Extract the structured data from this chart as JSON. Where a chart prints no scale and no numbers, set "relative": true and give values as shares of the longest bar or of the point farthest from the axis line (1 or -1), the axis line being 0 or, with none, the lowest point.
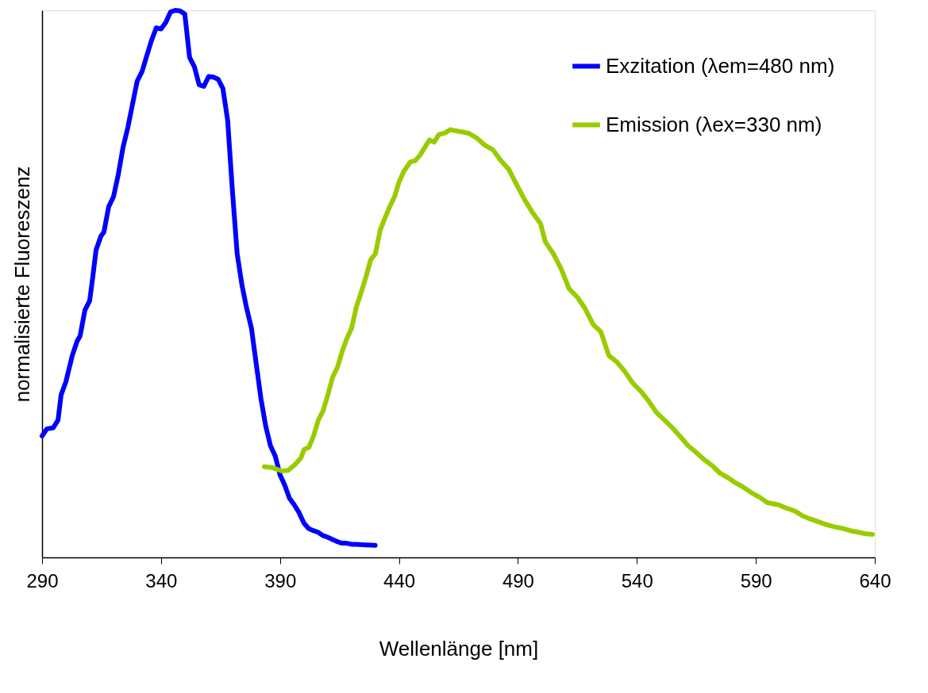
{
  "chart_data": {
    "type": "line",
    "xlabel": "Wellenlänge [nm]",
    "ylabel": "normalisierte Fluoreszenz",
    "relative": true,
    "xlim": [
      290,
      640
    ],
    "xticks": [
      290,
      340,
      390,
      440,
      490,
      540,
      590,
      640
    ],
    "grid": false,
    "legend": "top right",
    "marker": "none",
    "line_style": "solid",
    "series": [
      {
        "name": "Exzitation (λem=480 nm)",
        "color": "#0000ff",
        "x": [
          290,
          292,
          294.7,
          296.7,
          298,
          300,
          302.7,
          304.7,
          306,
          308,
          310,
          311.3,
          312.7,
          314.7,
          316,
          318,
          320,
          322,
          324,
          326,
          328,
          330,
          332,
          334,
          336,
          338,
          340,
          342,
          344,
          346,
          348,
          350,
          352,
          354,
          356,
          358,
          360,
          362,
          364,
          366,
          368,
          370,
          372,
          374,
          376,
          378,
          380,
          382,
          384,
          386,
          388,
          390,
          392,
          394,
          396,
          398,
          400,
          402,
          404,
          406,
          408,
          410,
          412,
          414,
          416,
          418,
          420,
          422,
          426,
          430
        ],
        "values": [
          0.222,
          0.235,
          0.237,
          0.251,
          0.297,
          0.321,
          0.369,
          0.395,
          0.405,
          0.452,
          0.469,
          0.512,
          0.562,
          0.587,
          0.595,
          0.641,
          0.659,
          0.699,
          0.749,
          0.785,
          0.828,
          0.871,
          0.888,
          0.917,
          0.945,
          0.968,
          0.966,
          0.978,
          0.997,
          1.0,
          0.999,
          0.993,
          0.914,
          0.897,
          0.864,
          0.861,
          0.879,
          0.878,
          0.874,
          0.857,
          0.799,
          0.67,
          0.555,
          0.498,
          0.455,
          0.419,
          0.354,
          0.29,
          0.24,
          0.204,
          0.185,
          0.151,
          0.132,
          0.108,
          0.096,
          0.082,
          0.063,
          0.053,
          0.049,
          0.046,
          0.04,
          0.037,
          0.033,
          0.029,
          0.026,
          0.026,
          0.024,
          0.024,
          0.023,
          0.022
        ]
      },
      {
        "name": "Emission (λex=330 nm)",
        "color": "#99cc00",
        "x": [
          383.4,
          386.8,
          390.8,
          393.4,
          396.1,
          398.8,
          400.1,
          402.1,
          404.1,
          406.1,
          408.1,
          410.1,
          412.1,
          414.1,
          416.1,
          418.1,
          420.1,
          422.1,
          424.1,
          426.1,
          428.1,
          430.1,
          432.1,
          434.1,
          436.1,
          438.1,
          440.1,
          442.1,
          444.8,
          446.8,
          448.8,
          450.8,
          452.8,
          454.8,
          456.8,
          459.5,
          461.5,
          463.5,
          466.2,
          469.5,
          472.9,
          476.2,
          479.5,
          482.9,
          486.2,
          489.5,
          492.9,
          496.2,
          499.5,
          501.5,
          504.9,
          508.2,
          511.5,
          514.9,
          518.2,
          521.6,
          524.9,
          528.2,
          531.6,
          534.9,
          538.2,
          541.6,
          544.9,
          548.2,
          551.6,
          554.9,
          558.2,
          561.6,
          564.9,
          568.2,
          571.6,
          574.9,
          578.2,
          581.6,
          584.9,
          588.2,
          591.6,
          594.9,
          599.6,
          602.9,
          606.3,
          609.6,
          613.0,
          616.3,
          619.6,
          623.0,
          626.3,
          629.7,
          633.0,
          636.3,
          639.0
        ],
        "values": [
          0.166,
          0.164,
          0.158,
          0.159,
          0.169,
          0.182,
          0.197,
          0.201,
          0.222,
          0.251,
          0.268,
          0.297,
          0.329,
          0.347,
          0.376,
          0.4,
          0.419,
          0.458,
          0.484,
          0.512,
          0.544,
          0.555,
          0.598,
          0.62,
          0.641,
          0.659,
          0.687,
          0.706,
          0.723,
          0.725,
          0.735,
          0.749,
          0.763,
          0.759,
          0.773,
          0.776,
          0.782,
          0.78,
          0.778,
          0.775,
          0.766,
          0.753,
          0.745,
          0.725,
          0.709,
          0.681,
          0.653,
          0.63,
          0.61,
          0.577,
          0.555,
          0.527,
          0.491,
          0.476,
          0.455,
          0.426,
          0.412,
          0.369,
          0.357,
          0.34,
          0.319,
          0.304,
          0.286,
          0.265,
          0.251,
          0.237,
          0.221,
          0.204,
          0.192,
          0.179,
          0.168,
          0.154,
          0.146,
          0.136,
          0.128,
          0.118,
          0.11,
          0.1,
          0.096,
          0.09,
          0.085,
          0.076,
          0.07,
          0.065,
          0.06,
          0.056,
          0.053,
          0.049,
          0.046,
          0.043,
          0.042
        ]
      }
    ]
  }
}
